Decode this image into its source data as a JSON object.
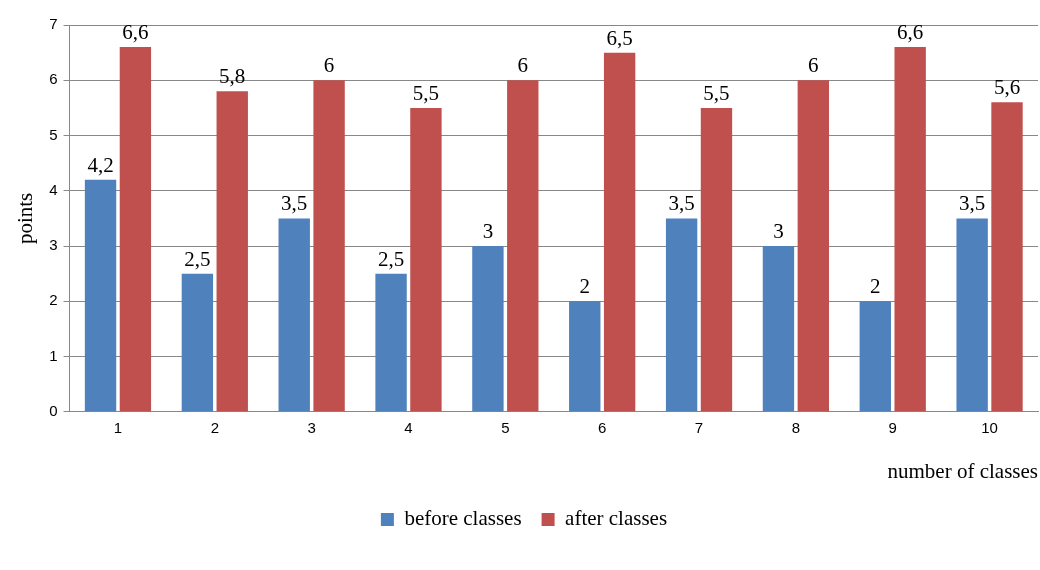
{
  "chart_data": {
    "type": "bar",
    "xlabel": "number of classes",
    "ylabel": "points",
    "categories": [
      "1",
      "2",
      "3",
      "4",
      "5",
      "6",
      "7",
      "8",
      "9",
      "10"
    ],
    "series": [
      {
        "name": "before classes",
        "color": "#4f81bd",
        "values": [
          4.2,
          2.5,
          3.5,
          2.5,
          3,
          2,
          3.5,
          3,
          2,
          3.5
        ],
        "value_labels": [
          "4,2",
          "2,5",
          "3,5",
          "2,5",
          "3",
          "2",
          "3,5",
          "3",
          "2",
          "3,5"
        ]
      },
      {
        "name": "after classes",
        "color": "#c0504d",
        "values": [
          6.6,
          5.8,
          6,
          5.5,
          6,
          6.5,
          5.5,
          6,
          6.6,
          5.6
        ],
        "value_labels": [
          "6,6",
          "5,8",
          "6",
          "5,5",
          "6",
          "6,5",
          "5,5",
          "6",
          "6,6",
          "5,6"
        ]
      }
    ],
    "ylim": [
      0,
      7
    ],
    "yticks": [
      0,
      1,
      2,
      3,
      4,
      5,
      6,
      7
    ],
    "grid": "y",
    "legend": "bottom"
  }
}
